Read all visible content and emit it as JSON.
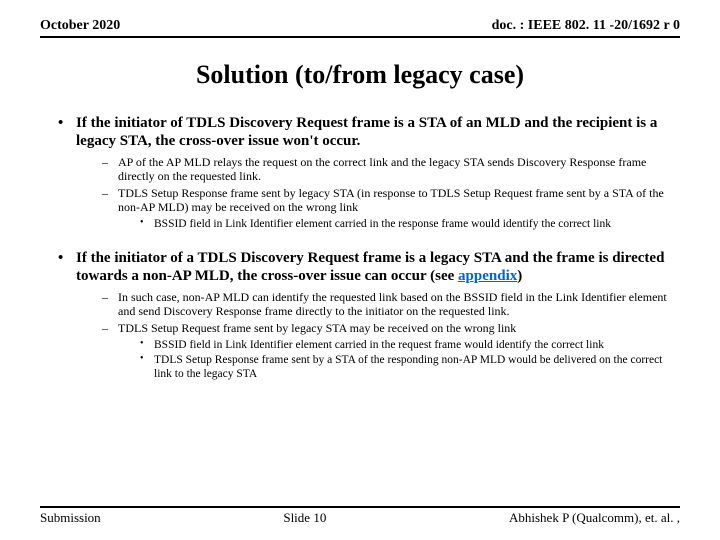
{
  "header": {
    "left": "October 2020",
    "right": "doc. : IEEE 802. 11 -20/1692 r 0"
  },
  "title": "Solution (to/from legacy case)",
  "bullets": [
    {
      "text": "If the initiator of TDLS Discovery Request frame is a STA of an MLD and the recipient is a legacy STA, the cross-over issue won't occur.",
      "subs": [
        {
          "text": "AP of the AP MLD relays the request on the correct link and the legacy STA sends Discovery Response frame directly on the requested link."
        },
        {
          "text": "TDLS Setup Response frame sent by legacy STA (in response to TDLS Setup Request frame sent by a STA of the non-AP MLD) may be received on the wrong link",
          "subsubs": [
            "BSSID field in Link Identifier element carried in the response frame would identify the correct link"
          ]
        }
      ]
    },
    {
      "text_pre": "If the initiator of a TDLS Discovery Request frame is a legacy STA and the frame is directed towards a non-AP MLD, the cross-over issue can occur (see ",
      "link_text": "appendix",
      "text_post": ")",
      "subs": [
        {
          "text": "In such case, non-AP MLD can identify the requested link based on the BSSID field in the Link Identifier element and send Discovery Response frame directly to the initiator on the requested link."
        },
        {
          "text": "TDLS Setup Request frame sent by legacy STA may be received on the wrong link",
          "subsubs": [
            "BSSID field in Link Identifier element carried in the request frame would identify the correct link",
            "TDLS Setup Response frame sent by a STA of the responding non-AP MLD would be delivered on the correct link to the legacy STA"
          ]
        }
      ]
    }
  ],
  "footer": {
    "left": "Submission",
    "center": "Slide 10",
    "right": "Abhishek P (Qualcomm), et. al. ,"
  },
  "colors": {
    "link": "#0066cc",
    "text": "#000000",
    "bg": "#ffffff"
  }
}
